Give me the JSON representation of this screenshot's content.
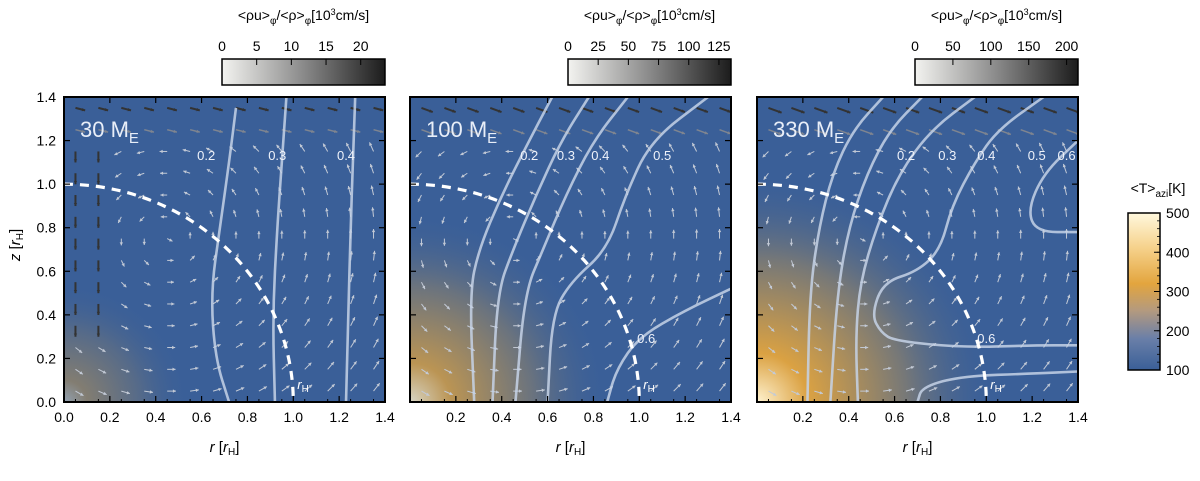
{
  "chart_data": [
    {
      "type": "heatmap",
      "title": "30 M_E",
      "panel_label": "30",
      "mass_unit": "M",
      "mass_sub": "E",
      "xlabel": "r [r_H]",
      "ylabel": "z [r_H]",
      "xlim": [
        0,
        1.4
      ],
      "ylim": [
        0,
        1.4
      ],
      "xticks": [
        "0.0",
        "0.2",
        "0.4",
        "0.6",
        "0.8",
        "1.0",
        "1.2",
        "1.4"
      ],
      "yticks": [
        "0.0",
        "0.2",
        "0.4",
        "0.6",
        "0.8",
        "1.0",
        "1.2",
        "1.4"
      ],
      "hot_spot": {
        "r": 0.0,
        "z": 0.0,
        "strength": 0.45
      },
      "colorbar": {
        "label": "<ρu>_φ/<ρ>_φ[10^3cm/s]",
        "ticks": [
          "0",
          "5",
          "10",
          "15",
          "20"
        ],
        "range": [
          0,
          23.5
        ]
      },
      "contours": [
        {
          "label": "0.2",
          "points": [
            [
              0.75,
              1.35
            ],
            [
              0.72,
              1.1
            ],
            [
              0.68,
              0.8
            ],
            [
              0.64,
              0.5
            ],
            [
              0.66,
              0.2
            ],
            [
              0.72,
              0.0
            ]
          ]
        },
        {
          "label": "0.3",
          "points": [
            [
              0.97,
              1.4
            ],
            [
              0.95,
              1.1
            ],
            [
              0.93,
              0.8
            ],
            [
              0.91,
              0.4
            ],
            [
              0.92,
              0.0
            ]
          ]
        },
        {
          "label": "0.4",
          "points": [
            [
              1.27,
              1.4
            ],
            [
              1.26,
              1.1
            ],
            [
              1.25,
              0.8
            ],
            [
              1.24,
              0.4
            ],
            [
              1.23,
              0.0
            ]
          ]
        }
      ],
      "contour_label_pos": [
        [
          0.62,
          1.13
        ],
        [
          0.93,
          1.13
        ],
        [
          1.23,
          1.13
        ]
      ],
      "hill_radius_label": "r_H"
    },
    {
      "type": "heatmap",
      "title": "100 M_E",
      "panel_label": "100",
      "mass_unit": "M",
      "mass_sub": "E",
      "xlabel": "r [r_H]",
      "xlim": [
        0,
        1.4
      ],
      "ylim": [
        0,
        1.4
      ],
      "xticks": [
        "0.2",
        "0.4",
        "0.6",
        "0.8",
        "1.0",
        "1.2",
        "1.4"
      ],
      "hot_spot": {
        "r": 0.0,
        "z": 0.0,
        "strength": 0.8
      },
      "colorbar": {
        "label": "<ρu>_φ/<ρ>_φ[10^3cm/s]",
        "ticks": [
          "0",
          "25",
          "50",
          "75",
          "100",
          "125"
        ],
        "range": [
          0,
          135
        ]
      },
      "contours": [
        {
          "label": "0.2",
          "points": [
            [
              0.62,
              1.4
            ],
            [
              0.52,
              1.2
            ],
            [
              0.4,
              0.95
            ],
            [
              0.3,
              0.7
            ],
            [
              0.26,
              0.5
            ],
            [
              0.28,
              0.0
            ]
          ]
        },
        {
          "label": "0.3",
          "points": [
            [
              0.78,
              1.4
            ],
            [
              0.66,
              1.2
            ],
            [
              0.55,
              0.95
            ],
            [
              0.45,
              0.7
            ],
            [
              0.38,
              0.5
            ],
            [
              0.36,
              0.0
            ]
          ]
        },
        {
          "label": "0.4",
          "points": [
            [
              0.95,
              1.4
            ],
            [
              0.8,
              1.2
            ],
            [
              0.68,
              0.95
            ],
            [
              0.58,
              0.7
            ],
            [
              0.5,
              0.5
            ],
            [
              0.46,
              0.0
            ]
          ]
        },
        {
          "label": "0.5",
          "points": [
            [
              1.3,
              1.4
            ],
            [
              1.05,
              1.2
            ],
            [
              0.94,
              0.95
            ],
            [
              0.86,
              0.7
            ],
            [
              0.7,
              0.55
            ],
            [
              0.62,
              0.4
            ],
            [
              0.6,
              0.0
            ]
          ]
        },
        {
          "label": "0.6",
          "points": [
            [
              1.4,
              0.52
            ],
            [
              1.2,
              0.42
            ],
            [
              1.0,
              0.3
            ],
            [
              0.9,
              0.15
            ],
            [
              0.86,
              0.0
            ]
          ]
        }
      ],
      "contour_label_pos": [
        [
          0.52,
          1.13
        ],
        [
          0.68,
          1.13
        ],
        [
          0.83,
          1.13
        ],
        [
          1.1,
          1.13
        ],
        [
          1.03,
          0.29
        ]
      ],
      "hill_radius_label": "r_H"
    },
    {
      "type": "heatmap",
      "title": "330 M_E",
      "panel_label": "330",
      "mass_unit": "M",
      "mass_sub": "E",
      "xlabel": "r [r_H]",
      "xlim": [
        0,
        1.4
      ],
      "ylim": [
        0,
        1.4
      ],
      "xticks": [
        "0.2",
        "0.4",
        "0.6",
        "0.8",
        "1.0",
        "1.2",
        "1.4"
      ],
      "hot_spot": {
        "r": 0.0,
        "z": 0.0,
        "strength": 1.0
      },
      "colorbar": {
        "label": "<ρu>_φ/<ρ>_φ[10^3cm/s]",
        "ticks": [
          "0",
          "50",
          "100",
          "150",
          "200"
        ],
        "range": [
          0,
          215
        ]
      },
      "contours": [
        {
          "label": "0.2",
          "points": [
            [
              0.55,
              1.4
            ],
            [
              0.42,
              1.25
            ],
            [
              0.33,
              1.05
            ],
            [
              0.27,
              0.8
            ],
            [
              0.23,
              0.5
            ],
            [
              0.22,
              0.0
            ]
          ]
        },
        {
          "label": "0.3",
          "points": [
            [
              0.72,
              1.4
            ],
            [
              0.58,
              1.25
            ],
            [
              0.48,
              1.05
            ],
            [
              0.4,
              0.8
            ],
            [
              0.35,
              0.5
            ],
            [
              0.32,
              0.0
            ]
          ]
        },
        {
          "label": "0.4",
          "points": [
            [
              0.95,
              1.4
            ],
            [
              0.76,
              1.25
            ],
            [
              0.62,
              1.05
            ],
            [
              0.52,
              0.8
            ],
            [
              0.45,
              0.55
            ],
            [
              0.43,
              0.3
            ],
            [
              0.44,
              0.0
            ]
          ]
        },
        {
          "label": "0.5",
          "points": [
            [
              1.25,
              1.4
            ],
            [
              1.05,
              1.25
            ],
            [
              0.95,
              1.1
            ],
            [
              0.85,
              0.9
            ],
            [
              0.8,
              0.7
            ],
            [
              0.7,
              0.6
            ],
            [
              0.55,
              0.55
            ],
            [
              0.5,
              0.4
            ],
            [
              0.54,
              0.32
            ],
            [
              0.6,
              0.28
            ],
            [
              0.9,
              0.25
            ],
            [
              1.2,
              0.26
            ],
            [
              1.4,
              0.26
            ]
          ]
        },
        {
          "label": "0.6",
          "points": [
            [
              1.4,
              1.2
            ],
            [
              1.25,
              1.05
            ],
            [
              1.18,
              0.88
            ],
            [
              1.22,
              0.78
            ],
            [
              1.4,
              0.78
            ]
          ]
        },
        {
          "label": "0.6",
          "points": [
            [
              0.7,
              0.0
            ],
            [
              0.72,
              0.07
            ],
            [
              0.9,
              0.12
            ],
            [
              1.2,
              0.13
            ],
            [
              1.4,
              0.14
            ]
          ]
        }
      ],
      "contour_label_pos": [
        [
          0.65,
          1.13
        ],
        [
          0.83,
          1.13
        ],
        [
          1.0,
          1.13
        ],
        [
          1.22,
          1.13
        ],
        [
          1.35,
          1.13
        ],
        [
          1.0,
          0.29
        ],
        [
          1.0,
          0.14
        ]
      ],
      "hill_radius_label": "r_H"
    }
  ],
  "temperature_colorbar": {
    "label": "<T>_azi[K]",
    "ticks": [
      "100",
      "200",
      "300",
      "400",
      "500"
    ],
    "range": [
      100,
      500
    ]
  },
  "colors": {
    "background_blue": "#3a5f98",
    "hot_orange": "#e3a53e",
    "hot_peak": "#fff3d0",
    "contour": "#c6d2e6",
    "hill_sphere": "#ffffff"
  }
}
